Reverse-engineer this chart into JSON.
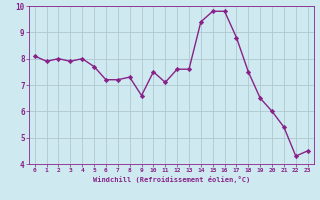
{
  "x": [
    0,
    1,
    2,
    3,
    4,
    5,
    6,
    7,
    8,
    9,
    10,
    11,
    12,
    13,
    14,
    15,
    16,
    17,
    18,
    19,
    20,
    21,
    22,
    23
  ],
  "y": [
    8.1,
    7.9,
    8.0,
    7.9,
    8.0,
    7.7,
    7.2,
    7.2,
    7.3,
    6.6,
    7.5,
    7.1,
    7.6,
    7.6,
    9.4,
    9.8,
    9.8,
    8.8,
    7.5,
    6.5,
    6.0,
    5.4,
    4.3,
    4.5
  ],
  "line_color": "#882288",
  "marker": "D",
  "marker_size": 2.2,
  "bg_color": "#ceeaf0",
  "grid_color": "#b0c8d0",
  "xlabel": "Windchill (Refroidissement éolien,°C)",
  "xlabel_color": "#882288",
  "tick_color": "#882288",
  "xlim": [
    -0.5,
    23.5
  ],
  "ylim": [
    4,
    10
  ],
  "yticks": [
    4,
    5,
    6,
    7,
    8,
    9,
    10
  ],
  "xticks": [
    0,
    1,
    2,
    3,
    4,
    5,
    6,
    7,
    8,
    9,
    10,
    11,
    12,
    13,
    14,
    15,
    16,
    17,
    18,
    19,
    20,
    21,
    22,
    23
  ],
  "line_width": 1.0
}
